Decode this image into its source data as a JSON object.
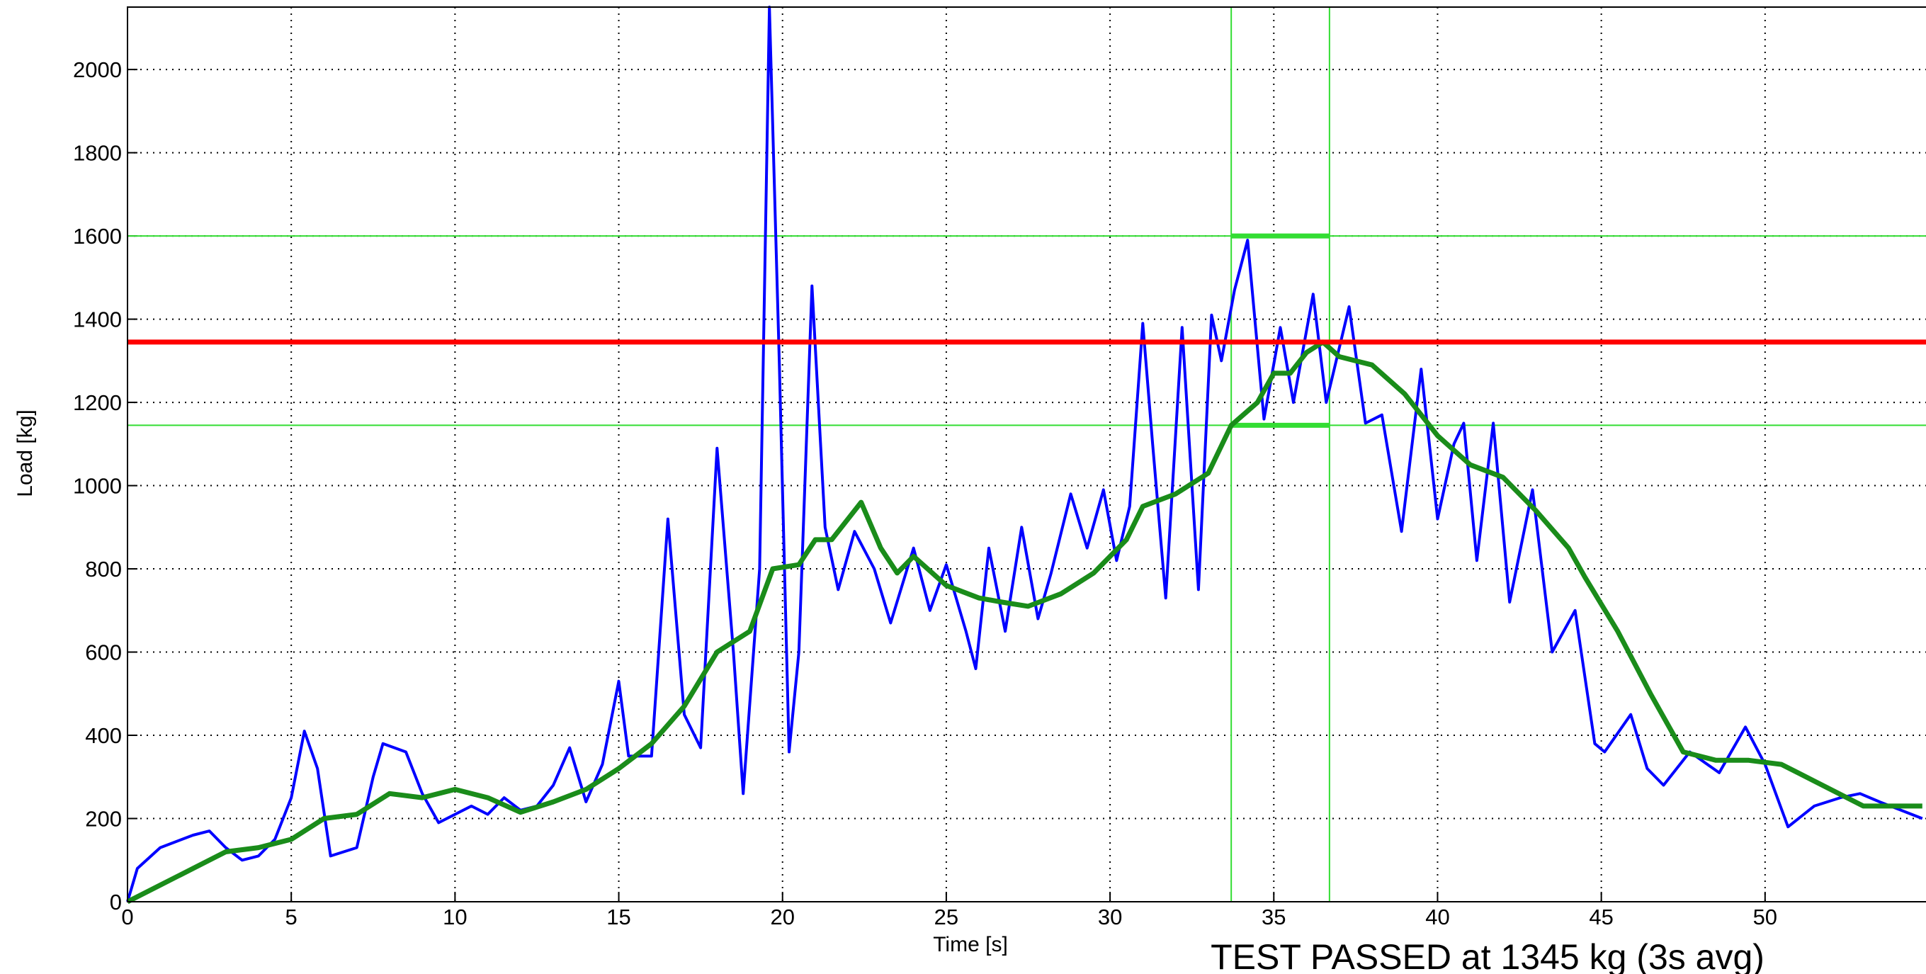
{
  "chart_data": {
    "type": "line",
    "xlabel": "Time [s]",
    "ylabel": "Load [kg]",
    "annotation": "TEST PASSED at 1345 kg (3s avg)",
    "xlim": [
      0,
      55
    ],
    "ylim": [
      0,
      2150
    ],
    "xticks": [
      0,
      5,
      10,
      15,
      20,
      25,
      30,
      35,
      40,
      45,
      50
    ],
    "yticks": [
      0,
      200,
      400,
      600,
      800,
      1000,
      1200,
      1400,
      1600,
      1800,
      2000
    ],
    "grid": true,
    "series": [
      {
        "color": "#0000ff",
        "x": [
          0,
          0.3,
          1,
          2,
          2.5,
          3,
          3.5,
          4,
          4.5,
          5,
          5.4,
          5.8,
          6.2,
          7,
          7.5,
          7.8,
          8.5,
          9,
          9.5,
          10,
          10.5,
          11,
          11.5,
          12,
          12.5,
          13,
          13.5,
          14,
          14.5,
          15,
          15.3,
          16,
          16.5,
          17,
          17.5,
          18,
          18.5,
          18.8,
          19.3,
          19.6,
          19.9,
          20.2,
          20.5,
          20.9,
          21.3,
          21.7,
          22.2,
          22.8,
          23.3,
          24,
          24.5,
          25,
          25.6,
          25.9,
          26.3,
          26.8,
          27.3,
          27.8,
          28.2,
          28.8,
          29.3,
          29.8,
          30.2,
          30.6,
          31,
          31.3,
          31.7,
          32.2,
          32.7,
          33.1,
          33.4,
          33.8,
          34.2,
          34.7,
          35.2,
          35.6,
          36.2,
          36.6,
          37.3,
          37.8,
          38.3,
          38.9,
          39.5,
          40,
          40.5,
          40.8,
          41.2,
          41.7,
          42.2,
          42.9,
          43.5,
          44.2,
          44.8,
          45.1,
          45.9,
          46.4,
          46.9,
          47.7,
          48.6,
          49.4,
          50,
          50.7,
          51.5,
          52.3,
          52.9,
          53.5,
          54.8
        ],
        "values": [
          0,
          80,
          130,
          160,
          170,
          130,
          100,
          110,
          150,
          250,
          410,
          320,
          110,
          130,
          300,
          380,
          360,
          260,
          190,
          210,
          230,
          210,
          250,
          220,
          230,
          280,
          370,
          240,
          330,
          530,
          350,
          350,
          920,
          450,
          370,
          1090,
          600,
          260,
          800,
          2150,
          1300,
          360,
          600,
          1480,
          900,
          750,
          890,
          800,
          670,
          850,
          700,
          810,
          650,
          560,
          850,
          650,
          900,
          680,
          790,
          980,
          850,
          990,
          820,
          950,
          1390,
          1100,
          730,
          1380,
          750,
          1410,
          1300,
          1470,
          1590,
          1160,
          1380,
          1200,
          1460,
          1200,
          1430,
          1150,
          1170,
          890,
          1280,
          920,
          1100,
          1150,
          820,
          1150,
          720,
          990,
          600,
          700,
          380,
          360,
          450,
          320,
          280,
          360,
          310,
          420,
          330,
          180,
          230,
          250,
          260,
          240,
          200
        ]
      },
      {
        "color": "#1a8c1a",
        "x": [
          0,
          1,
          2,
          3,
          4,
          5,
          6,
          7,
          8,
          9,
          10,
          11,
          12,
          13,
          14,
          15,
          16,
          17,
          18,
          19,
          19.7,
          20.5,
          21,
          21.5,
          22.4,
          23,
          23.5,
          24,
          25,
          26,
          26.7,
          27.5,
          28.5,
          29.5,
          30.5,
          31,
          32,
          33,
          33.7,
          34.5,
          35,
          35.5,
          36,
          36.5,
          37,
          38,
          39,
          40,
          41,
          42,
          43,
          44,
          44.5,
          45.5,
          46.5,
          47.5,
          48.5,
          49.5,
          50.5,
          51.5,
          52.5,
          53,
          54.8
        ],
        "values": [
          0,
          40,
          80,
          120,
          130,
          150,
          200,
          210,
          260,
          250,
          270,
          250,
          215,
          240,
          270,
          320,
          380,
          470,
          600,
          650,
          800,
          810,
          870,
          870,
          960,
          850,
          790,
          830,
          760,
          730,
          720,
          710,
          740,
          790,
          870,
          950,
          980,
          1030,
          1145,
          1200,
          1270,
          1270,
          1320,
          1345,
          1310,
          1290,
          1220,
          1120,
          1050,
          1020,
          940,
          850,
          780,
          650,
          500,
          360,
          340,
          340,
          330,
          290,
          250,
          230,
          230
        ]
      }
    ],
    "lines": [
      {
        "axis": "y",
        "value": 1600,
        "color": "#33dd33"
      },
      {
        "axis": "y",
        "value": 1145,
        "color": "#33dd33"
      },
      {
        "axis": "x",
        "value": 33.7,
        "color": "#33dd33"
      },
      {
        "axis": "x",
        "value": 36.7,
        "color": "#33dd33"
      },
      {
        "axis": "y",
        "value": 1345,
        "color": "#ff0000"
      }
    ]
  }
}
